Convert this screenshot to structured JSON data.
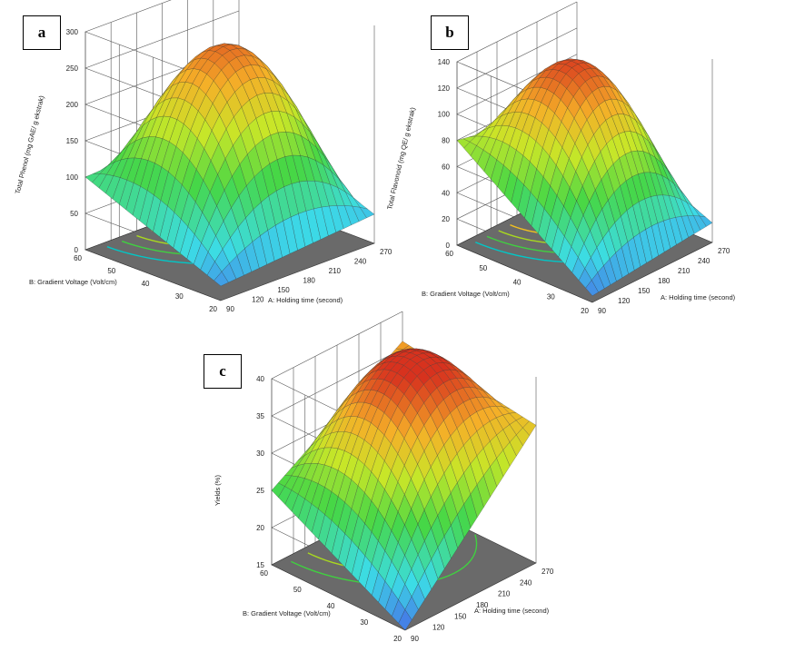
{
  "chart_data": [
    {
      "type": "surface3d",
      "panel_label": "a",
      "zlabel": "Total Phenol (mg GAE/ g ekstrak)",
      "xlabel": "A: Holding time (second)",
      "ylabel": "B: Gradient Voltage (Volt/cm)",
      "z_ticks": [
        0,
        50,
        100,
        150,
        200,
        250,
        300
      ],
      "x_ticks": [
        90,
        120,
        150,
        180,
        210,
        240,
        270
      ],
      "y_ticks": [
        20,
        30,
        40,
        50,
        60
      ],
      "zlim": [
        0,
        300
      ],
      "xlim": [
        90,
        270
      ],
      "ylim": [
        20,
        60
      ],
      "surface": {
        "corner_far": 100,
        "corner_right": 40,
        "corner_front": 20,
        "corner_back": 115,
        "peak": 270
      },
      "contour_colors": [
        "#00c8c8",
        "#40d040",
        "#a8d820",
        "#f0c020"
      ]
    },
    {
      "type": "surface3d",
      "panel_label": "b",
      "zlabel": "Total Flavonoid (mg QE/ g ekstrak)",
      "xlabel": "A: Holding time (second)",
      "ylabel": "B: Gradient Voltage (Volt/cm)",
      "z_ticks": [
        0,
        20,
        40,
        60,
        80,
        100,
        120,
        140
      ],
      "x_ticks": [
        90,
        120,
        150,
        180,
        210,
        240,
        270
      ],
      "y_ticks": [
        20,
        30,
        40,
        50,
        60
      ],
      "zlim": [
        0,
        140
      ],
      "xlim": [
        90,
        270
      ],
      "ylim": [
        20,
        60
      ],
      "surface": {
        "corner_far": 80,
        "corner_right": 15,
        "corner_front": 5,
        "corner_back": 60,
        "peak": 133
      },
      "contour_colors": [
        "#00c8c8",
        "#40d040",
        "#a8d820",
        "#f0c020"
      ]
    },
    {
      "type": "surface3d",
      "panel_label": "c",
      "zlabel": "Yields (%)",
      "xlabel": "A: Holding time (second)",
      "ylabel": "B: Gradient Voltage (Volt/cm)",
      "z_ticks": [
        15,
        20,
        25,
        30,
        35,
        40
      ],
      "x_ticks": [
        90,
        120,
        150,
        180,
        210,
        240,
        270
      ],
      "y_ticks": [
        20,
        30,
        40,
        50,
        60
      ],
      "zlim": [
        15,
        40
      ],
      "xlim": [
        90,
        270
      ],
      "ylim": [
        20,
        60
      ],
      "surface": {
        "corner_far": 25,
        "corner_right": 33.5,
        "corner_front": 15,
        "corner_back": 36,
        "peak": 40
      },
      "contour_colors": [
        "#40d040",
        "#a8d820",
        "#f0c020"
      ]
    }
  ]
}
